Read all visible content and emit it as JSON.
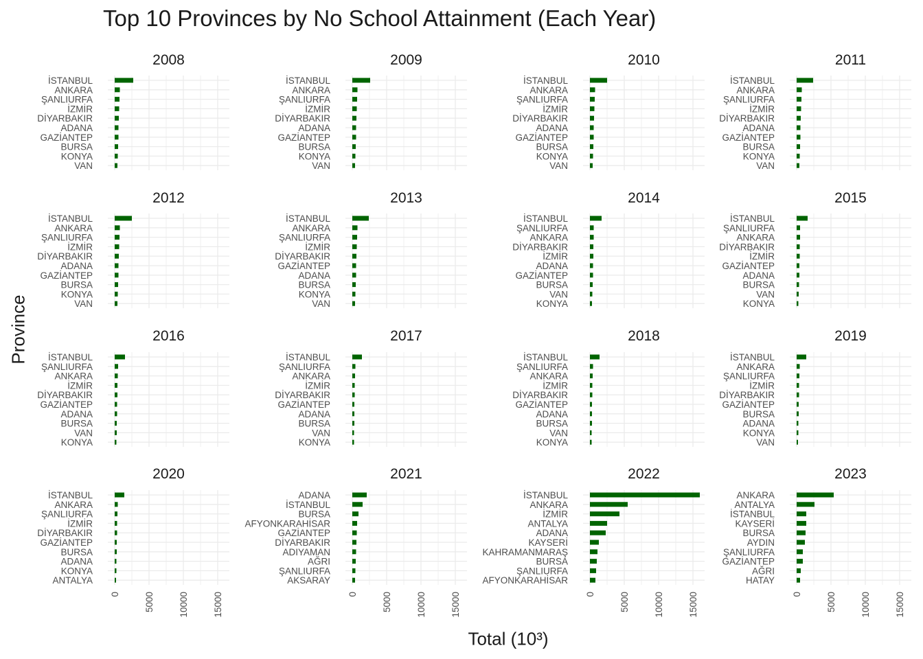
{
  "chart_data": {
    "type": "bar",
    "orientation": "horizontal",
    "title": "Top 10 Provinces by No School Attainment (Each Year)",
    "xlabel": "Total (10³)",
    "ylabel": "Province",
    "xlim": [
      -1000,
      16700
    ],
    "x_ticks": [
      0,
      5000,
      10000,
      15000
    ],
    "grid": true,
    "bar_color": "#006400",
    "panels": [
      {
        "year": "2008",
        "categories": [
          "İSTANBUL",
          "ANKARA",
          "ŞANLIURFA",
          "İZMİR",
          "DİYARBAKIR",
          "ADANA",
          "GAZİANTEP",
          "BURSA",
          "KONYA",
          "VAN"
        ],
        "values": [
          2700,
          750,
          700,
          650,
          600,
          550,
          550,
          500,
          450,
          400
        ]
      },
      {
        "year": "2009",
        "categories": [
          "İSTANBUL",
          "ANKARA",
          "ŞANLIURFA",
          "İZMİR",
          "DİYARBAKIR",
          "ADANA",
          "GAZİANTEP",
          "BURSA",
          "KONYA",
          "VAN"
        ],
        "values": [
          2600,
          750,
          700,
          650,
          600,
          550,
          550,
          500,
          450,
          400
        ]
      },
      {
        "year": "2010",
        "categories": [
          "İSTANBUL",
          "ANKARA",
          "ŞANLIURFA",
          "İZMİR",
          "DİYARBAKIR",
          "ADANA",
          "GAZİANTEP",
          "BURSA",
          "KONYA",
          "VAN"
        ],
        "values": [
          2500,
          750,
          700,
          650,
          600,
          550,
          550,
          500,
          450,
          400
        ]
      },
      {
        "year": "2011",
        "categories": [
          "İSTANBUL",
          "ANKARA",
          "ŞANLIURFA",
          "İZMİR",
          "DİYARBAKIR",
          "ADANA",
          "GAZİANTEP",
          "BURSA",
          "KONYA",
          "VAN"
        ],
        "values": [
          2400,
          750,
          700,
          650,
          600,
          550,
          550,
          500,
          450,
          400
        ]
      },
      {
        "year": "2012",
        "categories": [
          "İSTANBUL",
          "ANKARA",
          "ŞANLIURFA",
          "İZMİR",
          "DİYARBAKIR",
          "ADANA",
          "GAZİANTEP",
          "BURSA",
          "KONYA",
          "VAN"
        ],
        "values": [
          2500,
          750,
          700,
          650,
          600,
          550,
          550,
          500,
          450,
          400
        ]
      },
      {
        "year": "2013",
        "categories": [
          "İSTANBUL",
          "ANKARA",
          "ŞANLIURFA",
          "İZMİR",
          "DİYARBAKIR",
          "GAZİANTEP",
          "ADANA",
          "BURSA",
          "KONYA",
          "VAN"
        ],
        "values": [
          2400,
          750,
          700,
          650,
          600,
          550,
          550,
          500,
          450,
          400
        ]
      },
      {
        "year": "2014",
        "categories": [
          "İSTANBUL",
          "ŞANLIURFA",
          "ANKARA",
          "DİYARBAKIR",
          "İZMİR",
          "ADANA",
          "GAZİANTEP",
          "BURSA",
          "VAN",
          "KONYA"
        ],
        "values": [
          1700,
          550,
          550,
          500,
          500,
          450,
          450,
          400,
          350,
          300
        ]
      },
      {
        "year": "2015",
        "categories": [
          "İSTANBUL",
          "ŞANLIURFA",
          "ANKARA",
          "DİYARBAKIR",
          "İZMİR",
          "GAZİANTEP",
          "ADANA",
          "BURSA",
          "VAN",
          "KONYA"
        ],
        "values": [
          1600,
          500,
          500,
          450,
          450,
          400,
          400,
          350,
          300,
          250
        ]
      },
      {
        "year": "2016",
        "categories": [
          "İSTANBUL",
          "ŞANLIURFA",
          "ANKARA",
          "İZMİR",
          "DİYARBAKIR",
          "GAZİANTEP",
          "ADANA",
          "BURSA",
          "VAN",
          "KONYA"
        ],
        "values": [
          1500,
          500,
          450,
          400,
          400,
          350,
          350,
          300,
          300,
          250
        ]
      },
      {
        "year": "2017",
        "categories": [
          "İSTANBUL",
          "ŞANLIURFA",
          "ANKARA",
          "İZMİR",
          "DİYARBAKIR",
          "GAZİANTEP",
          "ADANA",
          "BURSA",
          "VAN",
          "KONYA"
        ],
        "values": [
          1400,
          450,
          400,
          350,
          350,
          300,
          300,
          300,
          250,
          250
        ]
      },
      {
        "year": "2018",
        "categories": [
          "İSTANBUL",
          "ŞANLIURFA",
          "ANKARA",
          "İZMİR",
          "DİYARBAKIR",
          "GAZİANTEP",
          "ADANA",
          "BURSA",
          "VAN",
          "KONYA"
        ],
        "values": [
          1400,
          450,
          400,
          350,
          350,
          300,
          300,
          300,
          250,
          250
        ]
      },
      {
        "year": "2019",
        "categories": [
          "İSTANBUL",
          "ANKARA",
          "ŞANLIURFA",
          "İZMİR",
          "DİYARBAKIR",
          "GAZİANTEP",
          "BURSA",
          "ADANA",
          "KONYA",
          "VAN"
        ],
        "values": [
          1400,
          450,
          400,
          350,
          350,
          300,
          300,
          250,
          250,
          200
        ]
      },
      {
        "year": "2020",
        "categories": [
          "İSTANBUL",
          "ANKARA",
          "ŞANLIURFA",
          "İZMİR",
          "DİYARBAKIR",
          "GAZİANTEP",
          "BURSA",
          "ADANA",
          "KONYA",
          "ANTALYA"
        ],
        "values": [
          1400,
          450,
          400,
          350,
          350,
          300,
          300,
          250,
          250,
          200
        ]
      },
      {
        "year": "2021",
        "categories": [
          "ADANA",
          "İSTANBUL",
          "BURSA",
          "AFYONKARAHİSAR",
          "GAZİANTEP",
          "DİYARBAKIR",
          "ADIYAMAN",
          "AĞRI",
          "ŞANLIURFA",
          "AKSARAY"
        ],
        "values": [
          2100,
          1500,
          900,
          700,
          650,
          600,
          550,
          500,
          450,
          400
        ]
      },
      {
        "year": "2022",
        "categories": [
          "İSTANBUL",
          "ANKARA",
          "İZMİR",
          "ANTALYA",
          "ADANA",
          "KAYSERİ",
          "KAHRAMANMARAŞ",
          "BURSA",
          "ŞANLIURFA",
          "AFYONKARAHİSAR"
        ],
        "values": [
          16000,
          5500,
          4300,
          2500,
          2300,
          1300,
          1100,
          1000,
          900,
          800
        ]
      },
      {
        "year": "2023",
        "categories": [
          "ANKARA",
          "ANTALYA",
          "İSTANBUL",
          "KAYSERİ",
          "BURSA",
          "AYDIN",
          "ŞANLIURFA",
          "GAZİANTEP",
          "AĞRI",
          "HATAY"
        ],
        "values": [
          5400,
          2600,
          1400,
          1400,
          1300,
          1200,
          900,
          900,
          600,
          500
        ]
      }
    ]
  }
}
